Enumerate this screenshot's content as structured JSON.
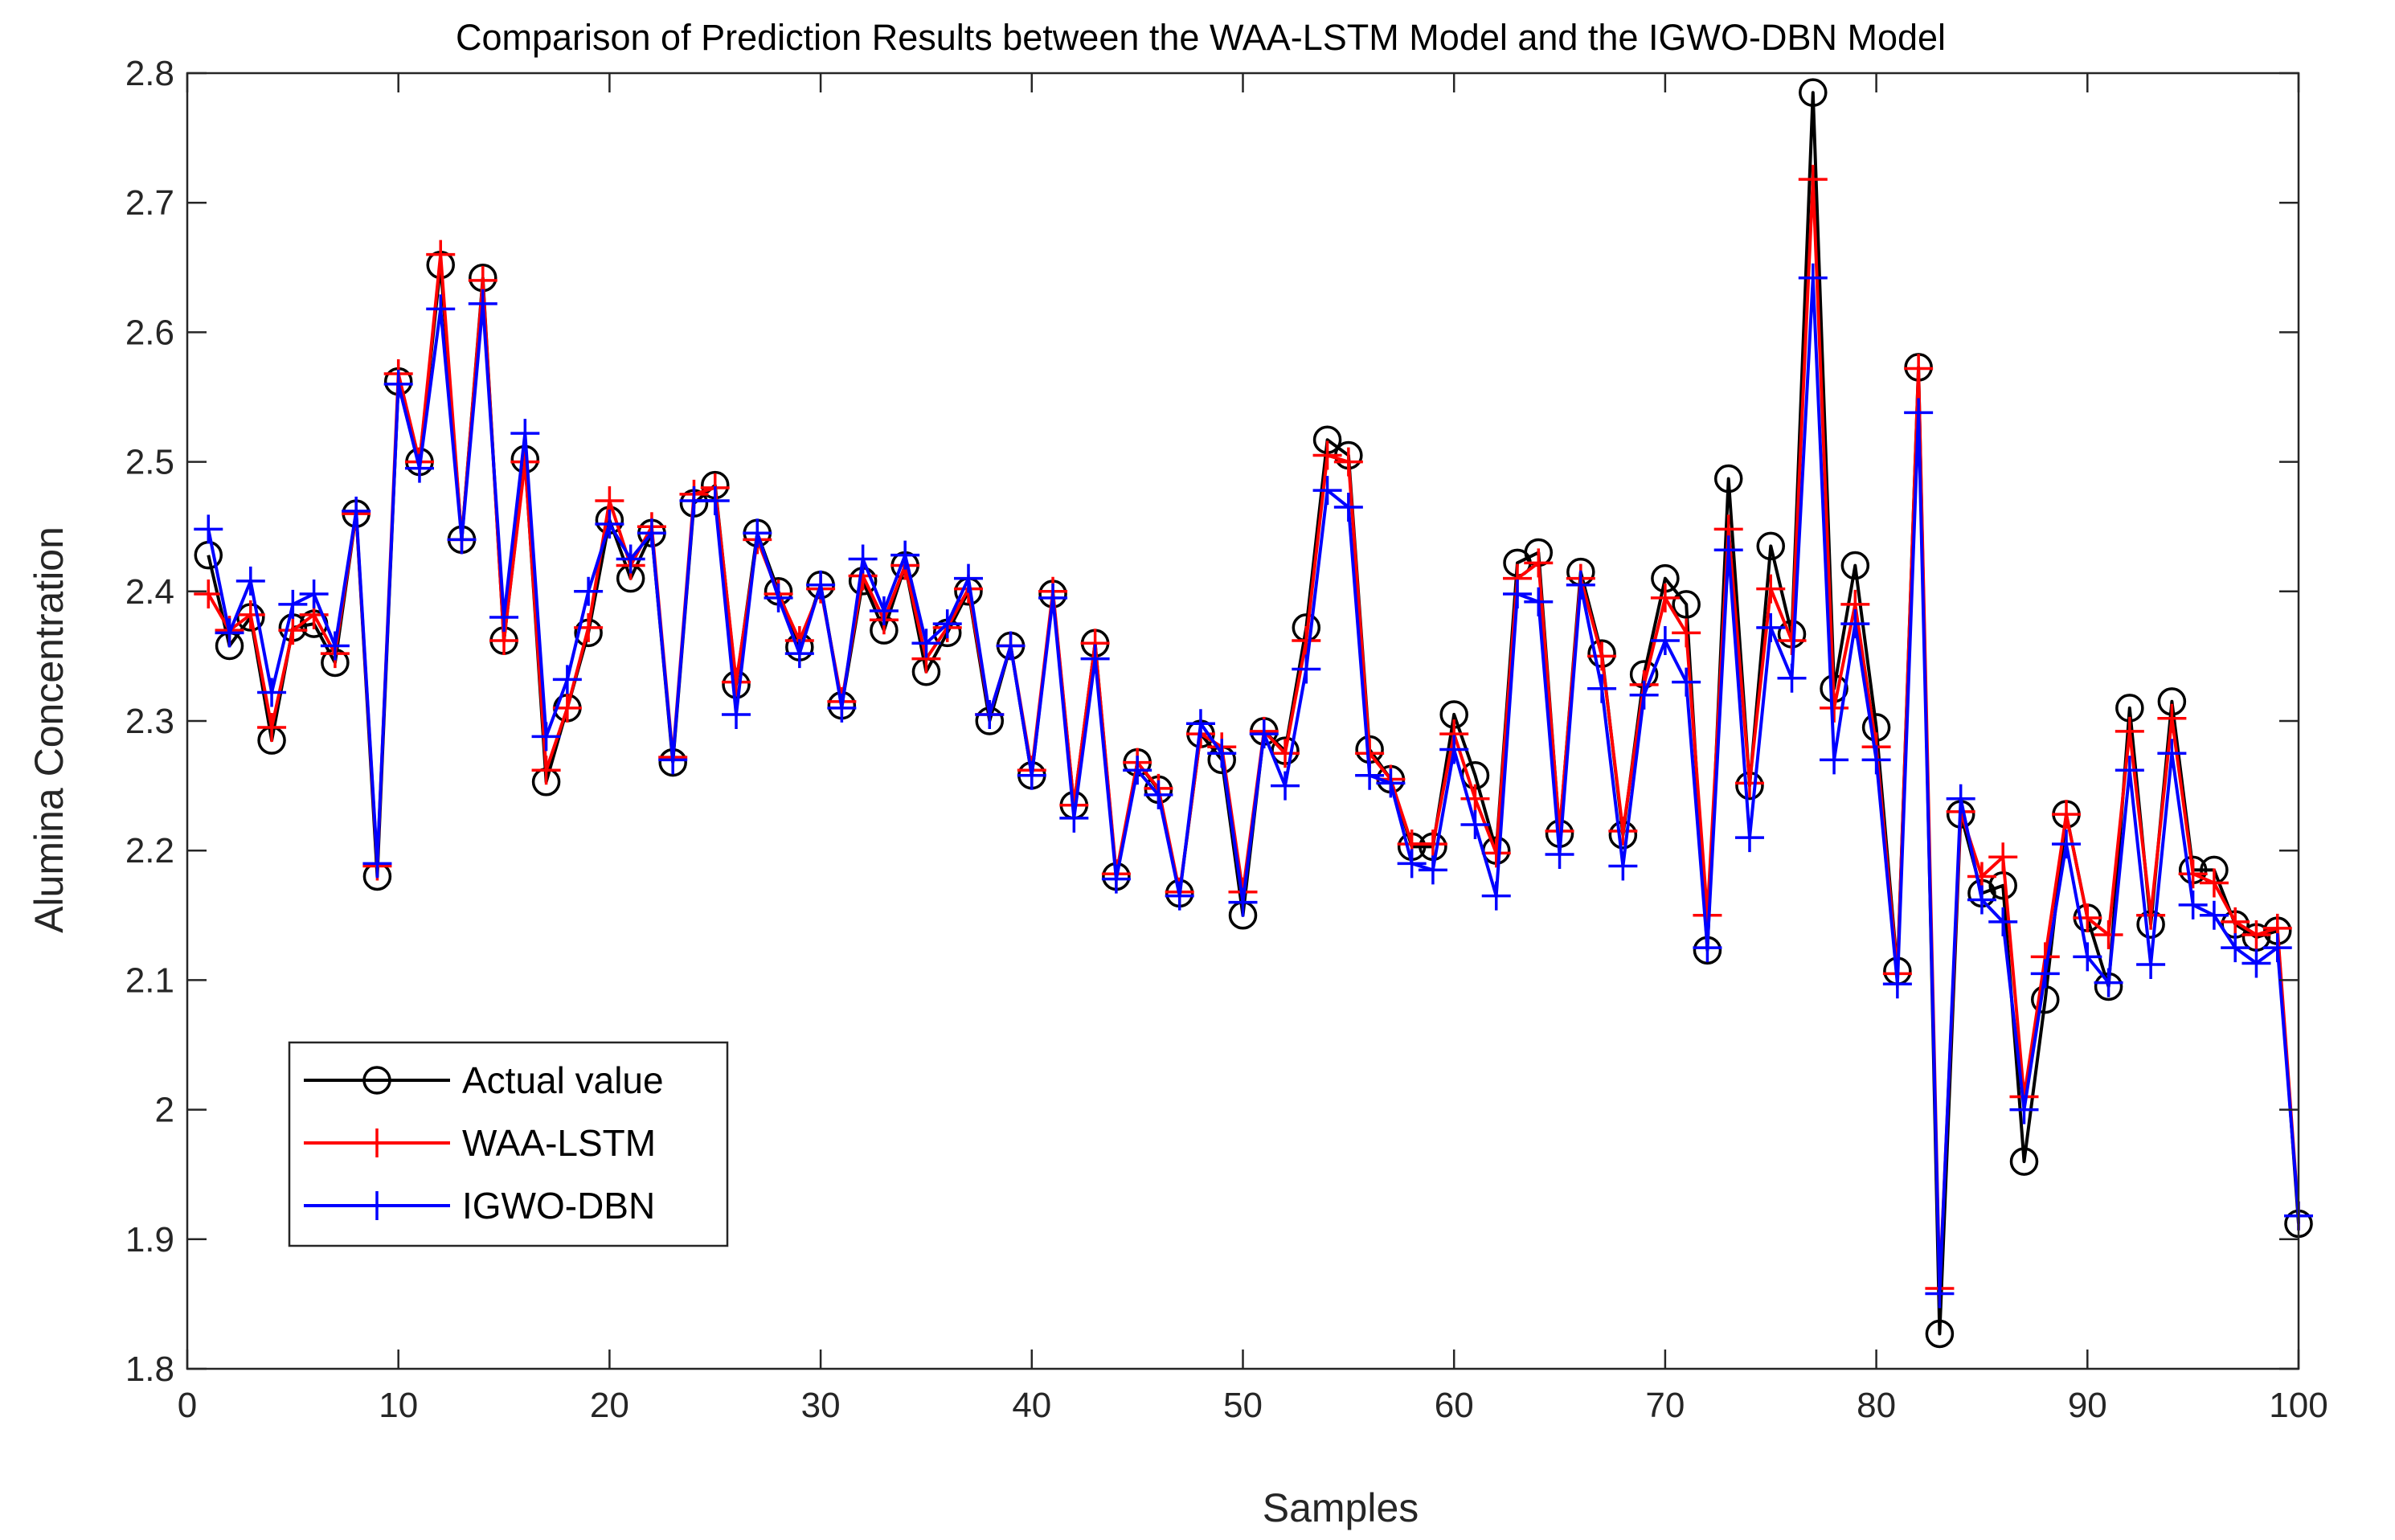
{
  "chart_data": {
    "type": "line",
    "title": "Comparison of Prediction Results between the WAA-LSTM Model and the IGWO-DBN Model",
    "xlabel": "Samples",
    "ylabel": "Alumina Concentration",
    "xlim": [
      0,
      100
    ],
    "ylim": [
      1.8,
      2.8
    ],
    "xticks": [
      "0",
      "10",
      "20",
      "30",
      "40",
      "50",
      "60",
      "70",
      "80",
      "90",
      "100"
    ],
    "yticks": [
      "1.8",
      "1.9",
      "2",
      "2.1",
      "2.2",
      "2.3",
      "2.4",
      "2.5",
      "2.6",
      "2.7",
      "2.8"
    ],
    "grid": false,
    "legend_position": "lower-left",
    "x": [
      1,
      2,
      3,
      4,
      5,
      6,
      7,
      8,
      9,
      10,
      11,
      12,
      13,
      14,
      15,
      16,
      17,
      18,
      19,
      20,
      21,
      22,
      23,
      24,
      25,
      26,
      27,
      28,
      29,
      30,
      31,
      32,
      33,
      34,
      35,
      36,
      37,
      38,
      39,
      40,
      41,
      42,
      43,
      44,
      45,
      46,
      47,
      48,
      49,
      50,
      51,
      52,
      53,
      54,
      55,
      56,
      57,
      58,
      59,
      60,
      61,
      62,
      63,
      64,
      65,
      66,
      67,
      68,
      69,
      70,
      71,
      72,
      73,
      74,
      75,
      76,
      77,
      78,
      79,
      80,
      81,
      82,
      83,
      84,
      85,
      86,
      87,
      88,
      89,
      90,
      91,
      92,
      93,
      94,
      95,
      96,
      97,
      98,
      99,
      100
    ],
    "series": [
      {
        "name": "Actual value",
        "color": "#000000",
        "marker": "circle",
        "values": [
          2.428,
          2.358,
          2.38,
          2.285,
          2.372,
          2.375,
          2.345,
          2.46,
          2.18,
          2.562,
          2.5,
          2.652,
          2.44,
          2.642,
          2.362,
          2.502,
          2.253,
          2.31,
          2.368,
          2.455,
          2.41,
          2.445,
          2.268,
          2.468,
          2.482,
          2.328,
          2.445,
          2.4,
          2.357,
          2.405,
          2.312,
          2.408,
          2.37,
          2.42,
          2.338,
          2.368,
          2.4,
          2.3,
          2.358,
          2.258,
          2.398,
          2.235,
          2.36,
          2.18,
          2.268,
          2.247,
          2.167,
          2.29,
          2.27,
          2.15,
          2.292,
          2.277,
          2.372,
          2.517,
          2.505,
          2.278,
          2.255,
          2.203,
          2.203,
          2.305,
          2.258,
          2.2,
          2.422,
          2.43,
          2.213,
          2.415,
          2.352,
          2.212,
          2.336,
          2.41,
          2.39,
          2.123,
          2.487,
          2.25,
          2.435,
          2.367,
          2.785,
          2.325,
          2.42,
          2.295,
          2.107,
          2.573,
          1.827,
          2.228,
          2.167,
          2.173,
          1.96,
          2.085,
          2.228,
          2.148,
          2.095,
          2.31,
          2.143,
          2.315,
          2.185,
          2.185,
          2.143,
          2.133,
          2.138,
          1.912
        ]
      },
      {
        "name": "WAA-LSTM",
        "color": "#ff0000",
        "marker": "plus",
        "values": [
          2.398,
          2.37,
          2.382,
          2.295,
          2.37,
          2.382,
          2.352,
          2.46,
          2.188,
          2.568,
          2.5,
          2.66,
          2.44,
          2.64,
          2.362,
          2.5,
          2.262,
          2.31,
          2.372,
          2.47,
          2.42,
          2.45,
          2.272,
          2.475,
          2.48,
          2.33,
          2.44,
          2.398,
          2.362,
          2.402,
          2.315,
          2.412,
          2.378,
          2.42,
          2.348,
          2.372,
          2.402,
          2.305,
          2.358,
          2.262,
          2.4,
          2.235,
          2.36,
          2.182,
          2.268,
          2.248,
          2.168,
          2.29,
          2.28,
          2.168,
          2.292,
          2.275,
          2.362,
          2.505,
          2.5,
          2.275,
          2.255,
          2.205,
          2.205,
          2.29,
          2.24,
          2.198,
          2.41,
          2.422,
          2.215,
          2.41,
          2.35,
          2.215,
          2.328,
          2.395,
          2.368,
          2.15,
          2.448,
          2.252,
          2.402,
          2.362,
          2.718,
          2.31,
          2.39,
          2.28,
          2.105,
          2.572,
          1.862,
          2.23,
          2.18,
          2.195,
          2.01,
          2.118,
          2.228,
          2.148,
          2.135,
          2.292,
          2.15,
          2.302,
          2.182,
          2.175,
          2.145,
          2.135,
          2.14,
          1.918
        ]
      },
      {
        "name": "IGWO-DBN",
        "color": "#0000ff",
        "marker": "plus",
        "values": [
          2.448,
          2.368,
          2.408,
          2.322,
          2.39,
          2.398,
          2.358,
          2.462,
          2.19,
          2.56,
          2.495,
          2.618,
          2.44,
          2.622,
          2.38,
          2.522,
          2.288,
          2.332,
          2.4,
          2.452,
          2.425,
          2.445,
          2.27,
          2.47,
          2.47,
          2.305,
          2.445,
          2.395,
          2.352,
          2.405,
          2.31,
          2.425,
          2.385,
          2.428,
          2.36,
          2.375,
          2.41,
          2.305,
          2.358,
          2.258,
          2.395,
          2.225,
          2.348,
          2.178,
          2.262,
          2.243,
          2.165,
          2.298,
          2.275,
          2.16,
          2.29,
          2.25,
          2.34,
          2.478,
          2.465,
          2.258,
          2.252,
          2.19,
          2.185,
          2.278,
          2.22,
          2.165,
          2.398,
          2.392,
          2.197,
          2.405,
          2.325,
          2.188,
          2.32,
          2.362,
          2.33,
          2.125,
          2.432,
          2.21,
          2.372,
          2.333,
          2.642,
          2.27,
          2.375,
          2.27,
          2.097,
          2.538,
          1.858,
          2.24,
          2.162,
          2.145,
          2.0,
          2.105,
          2.205,
          2.118,
          2.098,
          2.262,
          2.112,
          2.275,
          2.158,
          2.15,
          2.125,
          2.113,
          2.125,
          1.918
        ]
      }
    ]
  }
}
